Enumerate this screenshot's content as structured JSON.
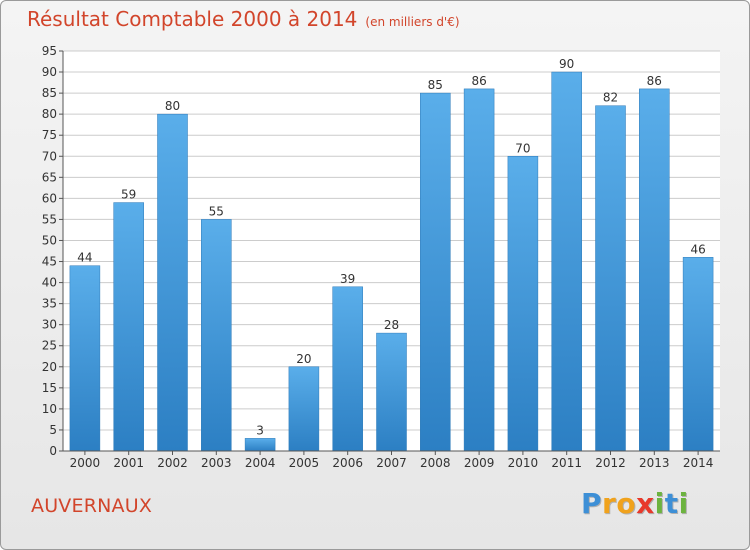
{
  "chart_data": {
    "type": "bar",
    "title": "Résultat Comptable 2000 à 2014",
    "subtitle": "(en milliers d'€)",
    "categories": [
      "2000",
      "2001",
      "2002",
      "2003",
      "2004",
      "2005",
      "2006",
      "2007",
      "2008",
      "2009",
      "2010",
      "2011",
      "2012",
      "2013",
      "2014"
    ],
    "values": [
      44,
      59,
      80,
      55,
      3,
      20,
      39,
      28,
      85,
      86,
      70,
      90,
      82,
      86,
      46
    ],
    "ylim": [
      0,
      95
    ],
    "yticks": [
      0,
      5,
      10,
      15,
      20,
      25,
      30,
      35,
      40,
      45,
      50,
      55,
      60,
      65,
      70,
      75,
      80,
      85,
      90,
      95
    ],
    "xlabel": "",
    "ylabel": "",
    "grid": true,
    "bar_color": "#3a90d4"
  },
  "location": "AUVERNAUX",
  "brand": {
    "letters": [
      "P",
      "r",
      "o",
      "x",
      "i",
      "t",
      "i"
    ],
    "colors": [
      "#3d8fd6",
      "#f0a21c",
      "#f0a21c",
      "#e8392b",
      "#6cb33f",
      "#3d8fd6",
      "#6cb33f"
    ]
  }
}
